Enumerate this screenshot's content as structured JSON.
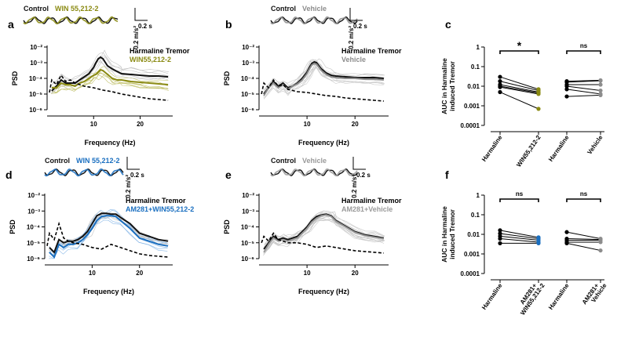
{
  "panel_letters": [
    "a",
    "b",
    "c",
    "d",
    "e",
    "f"
  ],
  "trace_scale": {
    "amplitude": "0.2 m/s²",
    "time": "0.2 s"
  },
  "colors": {
    "control": "#111111",
    "win": "#8a8a12",
    "win_light": "#bdbd60",
    "vehicle": "#8c8c8c",
    "am281_win": "#1a6fc0",
    "am281_win_light": "#7fb2e6",
    "am281_vehicle": "#9a9a9a",
    "gray_light": "#c8c8c8"
  },
  "chart_data": [
    {
      "panel": "a",
      "type": "line",
      "trace_legend": {
        "control": "Control",
        "treatment": "WIN 55,212-2"
      },
      "legend": [
        "Harmaline Tremor",
        "WIN55,212-2"
      ],
      "xlabel": "Frequency (Hz)",
      "ylabel": "PSD",
      "y_tick_labels": [
        "10⁻²",
        "10⁻³",
        "10⁻⁴",
        "10⁻⁵",
        "10⁻⁶"
      ],
      "ylim_log10": [
        -6,
        -2
      ],
      "xlim": [
        0,
        27
      ],
      "x_ticks": [
        10,
        20
      ],
      "series": [
        {
          "name": "Harmaline Tremor",
          "x": [
            1,
            2,
            3,
            4,
            5,
            6,
            7,
            8,
            9,
            10,
            10.5,
            11,
            11.5,
            12,
            13,
            14,
            15,
            16,
            18,
            20,
            22,
            24,
            26
          ],
          "log10_psd": [
            -4.8,
            -4.5,
            -4.1,
            -4.3,
            -4.3,
            -4.3,
            -4.1,
            -3.9,
            -3.7,
            -3.3,
            -3.0,
            -2.75,
            -2.65,
            -2.75,
            -3.2,
            -3.4,
            -3.55,
            -3.7,
            -3.75,
            -3.8,
            -3.85,
            -3.85,
            -3.9
          ]
        },
        {
          "name": "WIN55,212-2",
          "x": [
            1,
            2,
            3,
            4,
            5,
            6,
            7,
            8,
            9,
            10,
            10.5,
            11,
            11.5,
            12,
            13,
            14,
            15,
            16,
            18,
            20,
            22,
            24,
            26
          ],
          "log10_psd": [
            -4.6,
            -4.6,
            -4.3,
            -4.4,
            -4.4,
            -4.5,
            -4.3,
            -4.2,
            -4.0,
            -3.8,
            -3.75,
            -3.6,
            -3.45,
            -3.5,
            -3.75,
            -4.0,
            -4.1,
            -4.1,
            -4.2,
            -4.25,
            -4.3,
            -4.35,
            -4.4
          ]
        },
        {
          "name": "Control",
          "x": [
            0.5,
            1,
            2,
            3,
            4,
            5,
            6,
            8,
            10,
            12,
            14,
            16,
            18,
            20,
            22,
            24,
            26
          ],
          "log10_psd": [
            -4.9,
            -4.1,
            -4.4,
            -3.8,
            -4.2,
            -4.1,
            -4.3,
            -4.5,
            -4.6,
            -4.75,
            -4.85,
            -5.0,
            -5.1,
            -5.2,
            -5.3,
            -5.35,
            -5.4
          ]
        }
      ]
    },
    {
      "panel": "b",
      "type": "line",
      "trace_legend": {
        "control": "Control",
        "treatment": "Vehicle"
      },
      "legend": [
        "Harmaline Tremor",
        "Vehicle"
      ],
      "xlabel": "Frequency (Hz)",
      "ylabel": "PSD",
      "y_tick_labels": [
        "10⁻²",
        "10⁻³",
        "10⁻⁴",
        "10⁻⁵",
        "10⁻⁶"
      ],
      "ylim_log10": [
        -6,
        -2
      ],
      "xlim": [
        0,
        27
      ],
      "x_ticks": [
        10,
        20
      ],
      "series": [
        {
          "name": "Harmaline Tremor",
          "x": [
            1,
            2,
            3,
            4,
            5,
            6,
            7,
            8,
            9,
            10,
            10.5,
            11,
            11.5,
            12,
            13,
            14,
            15,
            16,
            18,
            20,
            22,
            24,
            26
          ],
          "log10_psd": [
            -5.0,
            -4.6,
            -4.2,
            -4.5,
            -4.3,
            -4.6,
            -4.5,
            -4.3,
            -4.0,
            -3.6,
            -3.3,
            -3.05,
            -2.95,
            -3.0,
            -3.4,
            -3.65,
            -3.8,
            -3.85,
            -3.9,
            -3.95,
            -3.95,
            -3.95,
            -4.0
          ]
        },
        {
          "name": "Vehicle",
          "x": [
            1,
            2,
            3,
            4,
            5,
            6,
            7,
            8,
            9,
            10,
            10.5,
            11,
            11.5,
            12,
            13,
            14,
            15,
            16,
            18,
            20,
            22,
            24,
            26
          ],
          "log10_psd": [
            -5.1,
            -4.6,
            -4.3,
            -4.6,
            -4.4,
            -4.7,
            -4.5,
            -4.35,
            -4.1,
            -3.7,
            -3.4,
            -3.15,
            -3.05,
            -3.1,
            -3.5,
            -3.75,
            -3.9,
            -3.95,
            -4.0,
            -4.0,
            -4.05,
            -4.05,
            -4.1
          ]
        },
        {
          "name": "Control",
          "x": [
            0.5,
            1,
            2,
            3,
            4,
            5,
            6,
            8,
            10,
            12,
            14,
            16,
            18,
            20,
            22,
            24,
            26
          ],
          "log10_psd": [
            -5.0,
            -4.3,
            -4.6,
            -4.1,
            -4.5,
            -4.4,
            -4.7,
            -4.85,
            -4.9,
            -5.0,
            -5.1,
            -5.15,
            -5.25,
            -5.3,
            -5.35,
            -5.4,
            -5.45
          ]
        }
      ]
    },
    {
      "panel": "c",
      "type": "scatter",
      "ylabel": "AUC in Harmaline induced Tremor",
      "y_tick_labels": [
        "1",
        "0.1",
        "0.01",
        "0.001",
        "0.0001"
      ],
      "ylim_log10": [
        -4,
        0
      ],
      "categories": [
        "Harmaline",
        "WIN55,212-2",
        "Harmaline",
        "Vehicle"
      ],
      "significance": [
        "*",
        "ns"
      ],
      "pairs": [
        {
          "group": "WIN55,212-2",
          "before": [
            0.03,
            0.018,
            0.012,
            0.01,
            0.009,
            0.005
          ],
          "after": [
            0.007,
            0.006,
            0.005,
            0.0045,
            0.004,
            0.0007
          ]
        },
        {
          "group": "Vehicle",
          "before": [
            0.018,
            0.016,
            0.012,
            0.01,
            0.007,
            0.003
          ],
          "after": [
            0.02,
            0.019,
            0.012,
            0.006,
            0.004,
            0.0035
          ]
        }
      ]
    },
    {
      "panel": "d",
      "type": "line",
      "trace_legend": {
        "control": "Control",
        "treatment": "WIN 55,212-2"
      },
      "legend": [
        "Harmaline Tremor",
        "AM281+WIN55,212-2"
      ],
      "xlabel": "Frequency (Hz)",
      "ylabel": "PSD",
      "y_tick_labels": [
        "10⁻²",
        "10⁻³",
        "10⁻⁴",
        "10⁻⁵",
        "10⁻⁶"
      ],
      "ylim_log10": [
        -6,
        -2
      ],
      "xlim": [
        0,
        27
      ],
      "x_ticks": [
        10,
        20
      ],
      "series": [
        {
          "name": "Harmaline Tremor",
          "x": [
            1,
            2,
            3,
            4,
            5,
            6,
            7,
            8,
            9,
            10,
            11,
            12,
            13,
            14,
            15,
            16,
            18,
            20,
            22,
            24,
            26
          ],
          "log10_psd": [
            -5.3,
            -5.6,
            -4.8,
            -5.0,
            -4.9,
            -4.9,
            -4.8,
            -4.6,
            -4.3,
            -3.8,
            -3.3,
            -3.15,
            -3.15,
            -3.2,
            -3.2,
            -3.4,
            -3.8,
            -4.4,
            -4.6,
            -4.8,
            -4.9
          ]
        },
        {
          "name": "AM281+WIN55,212-2",
          "x": [
            1,
            2,
            3,
            4,
            5,
            6,
            7,
            8,
            9,
            10,
            11,
            12,
            13,
            14,
            15,
            16,
            18,
            20,
            22,
            24,
            26
          ],
          "log10_psd": [
            -5.6,
            -5.9,
            -5.1,
            -5.3,
            -5.1,
            -5.1,
            -5.0,
            -4.8,
            -4.5,
            -4.1,
            -3.6,
            -3.35,
            -3.3,
            -3.3,
            -3.35,
            -3.6,
            -4.1,
            -4.7,
            -4.9,
            -5.1,
            -5.2
          ]
        },
        {
          "name": "Control",
          "x": [
            0.5,
            1,
            2,
            3,
            4,
            5,
            6,
            8,
            10,
            12,
            14,
            16,
            18,
            20,
            22,
            24,
            26
          ],
          "log10_psd": [
            -5.2,
            -4.4,
            -4.8,
            -3.8,
            -4.7,
            -4.9,
            -5.0,
            -5.1,
            -5.3,
            -5.4,
            -5.1,
            -5.3,
            -5.5,
            -5.7,
            -5.8,
            -5.85,
            -5.9
          ]
        }
      ]
    },
    {
      "panel": "e",
      "type": "line",
      "trace_legend": {
        "control": "Control",
        "treatment": "Vehicle"
      },
      "legend": [
        "Harmaline Tremor",
        "AM281+Vehicle"
      ],
      "xlabel": "Frequency (Hz)",
      "ylabel": "PSD",
      "y_tick_labels": [
        "10⁻²",
        "10⁻³",
        "10⁻⁴",
        "10⁻⁵",
        "10⁻⁶"
      ],
      "ylim_log10": [
        -6,
        -2
      ],
      "xlim": [
        0,
        27
      ],
      "x_ticks": [
        10,
        20
      ],
      "series": [
        {
          "name": "Harmaline Tremor",
          "x": [
            1,
            2,
            3,
            4,
            5,
            6,
            7,
            8,
            9,
            10,
            11,
            12,
            13,
            14,
            15,
            16,
            18,
            20,
            22,
            24,
            26
          ],
          "log10_psd": [
            -5.4,
            -5.0,
            -4.6,
            -4.8,
            -4.7,
            -4.8,
            -4.7,
            -4.6,
            -4.3,
            -4.0,
            -3.6,
            -3.35,
            -3.25,
            -3.2,
            -3.3,
            -3.6,
            -3.95,
            -4.3,
            -4.5,
            -4.6,
            -4.7
          ]
        },
        {
          "name": "AM281+Vehicle",
          "x": [
            1,
            2,
            3,
            4,
            5,
            6,
            7,
            8,
            9,
            10,
            11,
            12,
            13,
            14,
            15,
            16,
            18,
            20,
            22,
            24,
            26
          ],
          "log10_psd": [
            -5.6,
            -5.1,
            -4.7,
            -4.9,
            -4.8,
            -4.9,
            -4.8,
            -4.7,
            -4.4,
            -4.1,
            -3.7,
            -3.45,
            -3.3,
            -3.25,
            -3.35,
            -3.65,
            -4.0,
            -4.35,
            -4.55,
            -4.65,
            -4.75
          ]
        },
        {
          "name": "Control",
          "x": [
            0.5,
            1,
            2,
            3,
            4,
            5,
            6,
            8,
            10,
            12,
            14,
            16,
            18,
            20,
            22,
            24,
            26
          ],
          "log10_psd": [
            -5.0,
            -4.6,
            -4.9,
            -4.4,
            -4.8,
            -4.9,
            -5.0,
            -5.0,
            -5.1,
            -5.3,
            -5.2,
            -5.3,
            -5.4,
            -5.5,
            -5.55,
            -5.6,
            -5.65
          ]
        }
      ]
    },
    {
      "panel": "f",
      "type": "scatter",
      "ylabel": "AUC in Harmaline induced Tremor",
      "y_tick_labels": [
        "1",
        "0.1",
        "0.01",
        "0.001",
        "0.0001"
      ],
      "ylim_log10": [
        -4,
        0
      ],
      "categories": [
        "Harmaline",
        "AM281+\nWIN55,212-2",
        "Harmaline",
        "AM281+\nVehicle"
      ],
      "significance": [
        "ns",
        "ns"
      ],
      "pairs": [
        {
          "group": "AM281+WIN55,212-2",
          "before": [
            0.016,
            0.011,
            0.008,
            0.006,
            0.0035
          ],
          "after": [
            0.007,
            0.006,
            0.005,
            0.004,
            0.0035
          ]
        },
        {
          "group": "AM281+Vehicle",
          "before": [
            0.013,
            0.006,
            0.005,
            0.004,
            0.0035
          ],
          "after": [
            0.006,
            0.0055,
            0.005,
            0.004,
            0.0015
          ]
        }
      ]
    }
  ]
}
